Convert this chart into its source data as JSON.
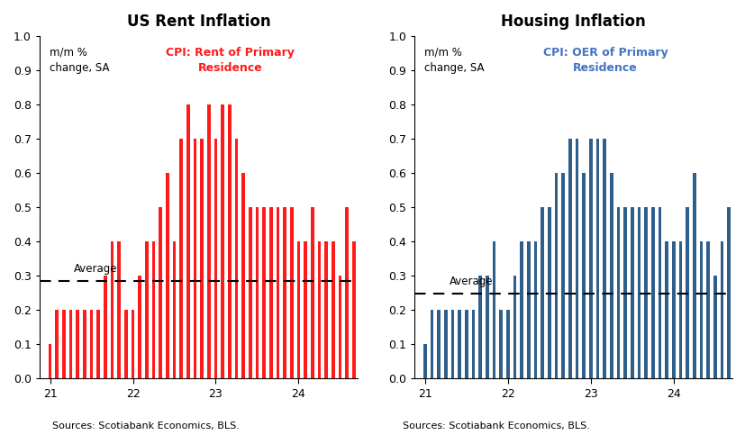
{
  "chart1": {
    "title": "US Rent Inflation",
    "ylabel": "m/m %\nchange, SA",
    "bar_color": "#FF1A1A",
    "legend_label": "CPI: Rent of Primary\nResidence",
    "legend_color": "#FF1A1A",
    "average": 0.285,
    "average_label": "Average",
    "source": "Sources: Scotiabank Economics, BLS.",
    "values": [
      0.1,
      0.2,
      0.2,
      0.2,
      0.2,
      0.2,
      0.2,
      0.2,
      0.3,
      0.4,
      0.4,
      0.2,
      0.2,
      0.3,
      0.4,
      0.4,
      0.5,
      0.6,
      0.4,
      0.7,
      0.8,
      0.7,
      0.7,
      0.8,
      0.7,
      0.8,
      0.8,
      0.7,
      0.6,
      0.5,
      0.5,
      0.5,
      0.5,
      0.5,
      0.5,
      0.5,
      0.4,
      0.4,
      0.5,
      0.4,
      0.4,
      0.4,
      0.3,
      0.5,
      0.4
    ]
  },
  "chart2": {
    "title": "Housing Inflation",
    "ylabel": "m/m %\nchange, SA",
    "bar_color": "#2E5F8A",
    "legend_label": "CPI: OER of Primary\nResidence",
    "legend_color": "#4472C4",
    "average": 0.248,
    "average_label": "Average",
    "source": "Sources: Scotiabank Economics, BLS.",
    "values": [
      0.1,
      0.2,
      0.2,
      0.2,
      0.2,
      0.2,
      0.2,
      0.2,
      0.3,
      0.3,
      0.4,
      0.2,
      0.2,
      0.3,
      0.4,
      0.4,
      0.4,
      0.5,
      0.5,
      0.6,
      0.6,
      0.7,
      0.7,
      0.6,
      0.7,
      0.7,
      0.7,
      0.6,
      0.5,
      0.5,
      0.5,
      0.5,
      0.5,
      0.5,
      0.5,
      0.4,
      0.4,
      0.4,
      0.5,
      0.6,
      0.4,
      0.4,
      0.3,
      0.4,
      0.5
    ]
  },
  "ylim": [
    0.0,
    1.0
  ],
  "yticks": [
    0.0,
    0.1,
    0.2,
    0.3,
    0.4,
    0.5,
    0.6,
    0.7,
    0.8,
    0.9,
    1.0
  ],
  "background_color": "#FFFFFF",
  "title_fontsize": 12,
  "axis_label_fontsize": 8.5,
  "tick_fontsize": 9,
  "source_fontsize": 8,
  "legend_fontsize": 9
}
